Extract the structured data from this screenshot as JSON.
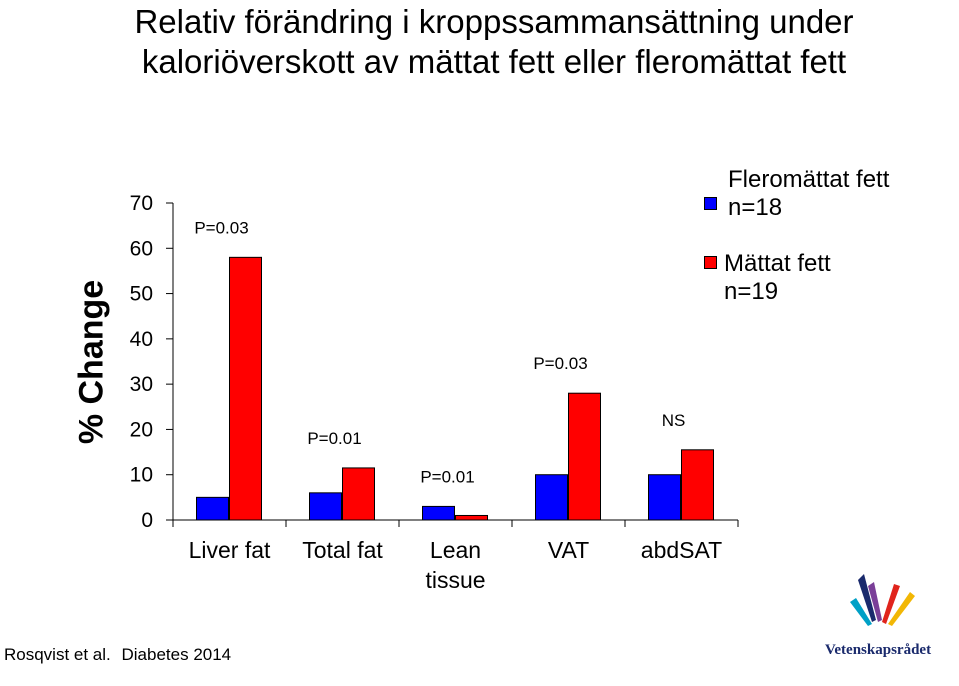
{
  "title_line1": "Relativ förändring i kroppssammansättning under",
  "title_line2": "kaloriöverskott av mättat fett eller fleromättat fett",
  "chart_data": {
    "type": "bar",
    "ylabel": "% Change",
    "ylim": [
      0,
      70
    ],
    "yticks": [
      0,
      10,
      20,
      30,
      40,
      50,
      60,
      70
    ],
    "categories": [
      "Liver fat",
      "Total fat",
      "Lean\ntissue",
      "VAT",
      "abdSAT"
    ],
    "series": [
      {
        "name": "Fleromättat fett n=18",
        "color": "#0000ff",
        "values": [
          5,
          6,
          3,
          10,
          10
        ]
      },
      {
        "name": "Mättat fett n=19",
        "color": "#ff0000",
        "values": [
          58,
          11.5,
          1,
          28,
          15.5
        ]
      }
    ],
    "annotations": [
      "P=0.03",
      "P=0.01",
      "P=0.01",
      "P=0.03",
      "NS"
    ],
    "legend": "top-right",
    "grid": false
  },
  "legend": [
    {
      "line1": "Fleromättat fett",
      "line2": "n=18",
      "color": "#0000ff"
    },
    {
      "line1": "Mättat fett",
      "line2": "n=19",
      "color": "#ff0000"
    }
  ],
  "citation": {
    "authors": "Rosqvist et al.",
    "journal": "Diabetes 2014"
  },
  "logo": {
    "text": "Vetenskapsrådet",
    "icon": "vetenskapsradet-logo-icon"
  }
}
